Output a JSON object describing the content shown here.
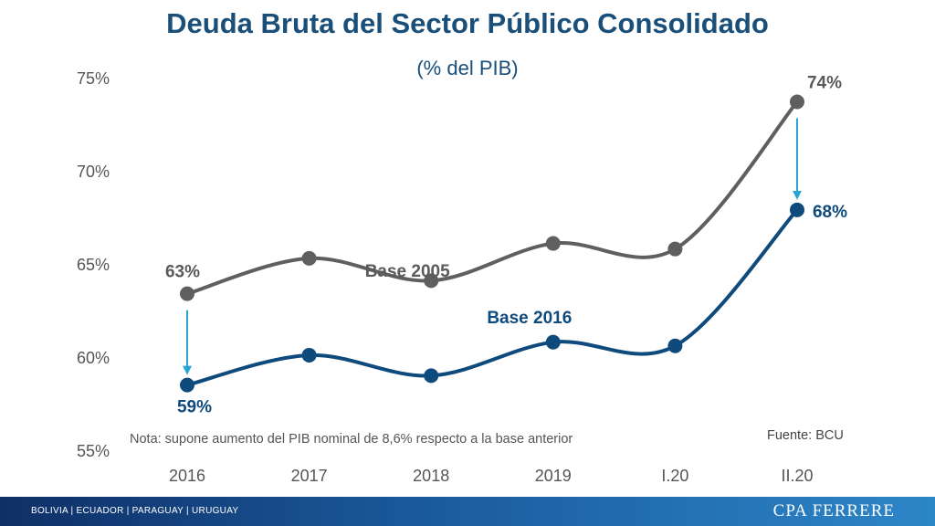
{
  "header": {
    "title": "Deuda Bruta del Sector Público Consolidado",
    "subtitle": "(% del PIB)"
  },
  "chart_data": {
    "type": "line",
    "title": "Deuda Bruta del Sector Público Consolidado",
    "subtitle": "(% del PIB)",
    "categories": [
      "2016",
      "2017",
      "2018",
      "2019",
      "I.20",
      "II.20"
    ],
    "ylim": [
      55,
      75
    ],
    "yticks": [
      55,
      60,
      65,
      70,
      75
    ],
    "ytick_labels": [
      "55%",
      "60%",
      "65%",
      "70%",
      "75%"
    ],
    "grid": false,
    "series": [
      {
        "name": "Base 2005",
        "color": "#5f5f5f",
        "values": [
          63.4,
          65.3,
          64.1,
          66.1,
          65.8,
          73.7
        ]
      },
      {
        "name": "Base 2016",
        "color": "#0f4a7d",
        "values": [
          58.5,
          60.1,
          59.0,
          60.8,
          60.6,
          67.9
        ]
      }
    ],
    "annotations": [
      {
        "text": "63%",
        "series": "Base 2005",
        "index": 0
      },
      {
        "text": "74%",
        "series": "Base 2005",
        "index": 5
      },
      {
        "text": "59%",
        "series": "Base 2016",
        "index": 0
      },
      {
        "text": "68%",
        "series": "Base 2016",
        "index": 5
      }
    ],
    "arrow_color": "#2aa3d5"
  },
  "note": "Nota: supone aumento del PIB nominal de 8,6% respecto a la base anterior",
  "source": "Fuente: BCU",
  "footer": {
    "countries": "BOLIVIA | ECUADOR | PARAGUAY | URUGUAY",
    "brand": "CPA FERRERE"
  }
}
